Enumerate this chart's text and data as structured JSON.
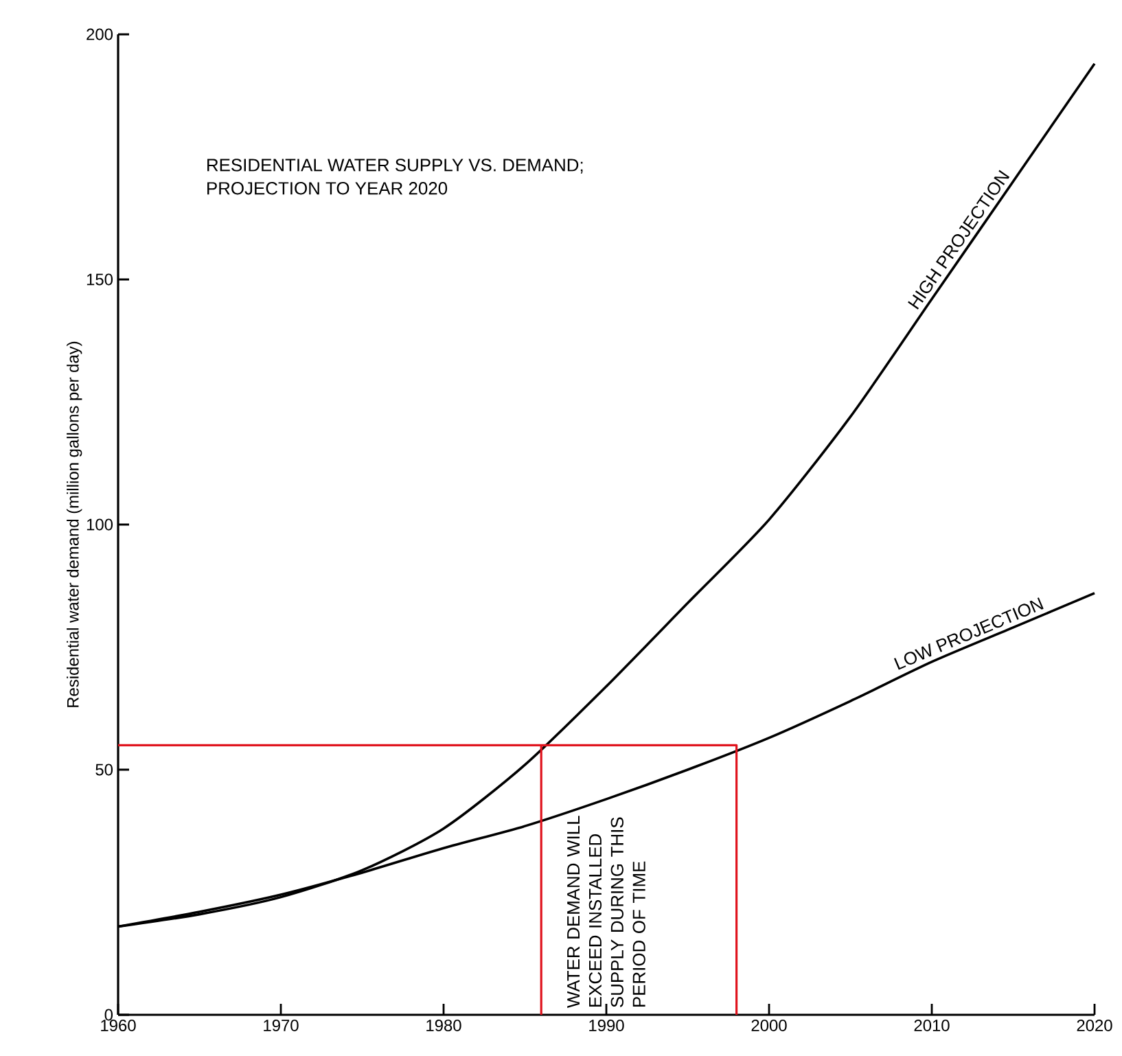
{
  "chart_data": {
    "type": "line",
    "title": "RESIDENTIAL WATER SUPPLY VS. DEMAND;",
    "subtitle": "PROJECTION TO YEAR 2020",
    "ylabel": "Residential water demand (million gallons per day)",
    "xlim": [
      1960,
      2020
    ],
    "ylim": [
      0,
      200
    ],
    "xticks": [
      1960,
      1970,
      1980,
      1990,
      2000,
      2010,
      2020
    ],
    "yticks": [
      0,
      50,
      100,
      150,
      200
    ],
    "series": [
      {
        "name": "HIGH PROJECTION",
        "color": "#000000",
        "x": [
          1960,
          1965,
          1970,
          1975,
          1980,
          1985,
          1990,
          1995,
          2000,
          2005,
          2010,
          2015,
          2020
        ],
        "values": [
          18,
          20.5,
          24,
          29.5,
          38,
          51,
          67,
          84,
          101,
          122,
          146,
          170,
          194
        ]
      },
      {
        "name": "LOW PROJECTION",
        "color": "#000000",
        "x": [
          1960,
          1965,
          1970,
          1975,
          1980,
          1985,
          1990,
          1995,
          2000,
          2005,
          2010,
          2015,
          2020
        ],
        "values": [
          18,
          21,
          24.5,
          29,
          34,
          38.5,
          44,
          50,
          56.5,
          64,
          72,
          79,
          86
        ]
      },
      {
        "color": "#e0141e",
        "x": [
          1960,
          1998,
          1998
        ],
        "values": [
          55,
          55,
          0
        ]
      },
      {
        "color": "#e0141e",
        "x": [
          1986,
          1986
        ],
        "values": [
          55,
          0
        ]
      }
    ],
    "annotations": [
      "WATER DEMAND WILL EXCEED INSTALLED SUPPLY DURING THIS PERIOD OF TIME"
    ]
  }
}
